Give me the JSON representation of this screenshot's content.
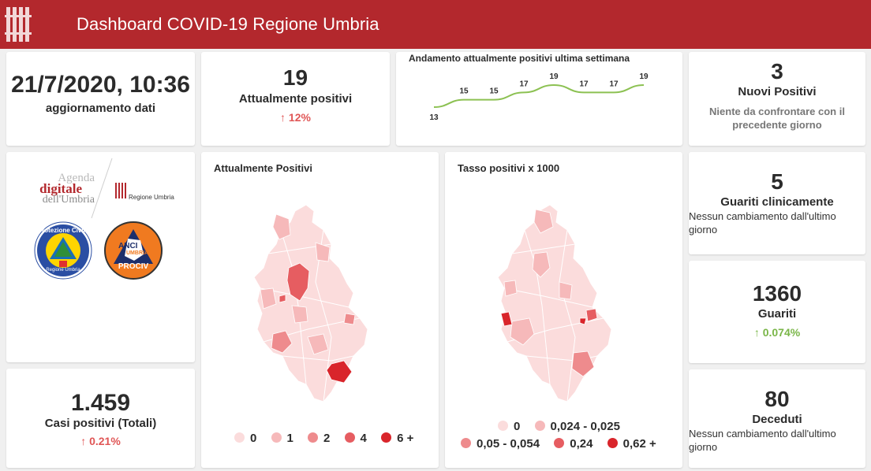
{
  "header": {
    "title": "Dashboard COVID-19 Regione Umbria"
  },
  "update": {
    "datetime": "21/7/2020, 10:36",
    "label": "aggiornamento dati"
  },
  "attualmente": {
    "value": "19",
    "label": "Attualmente positivi",
    "change": "↑ 12%"
  },
  "trend": {
    "title": "Andamento attualmente positivi ultima settimana",
    "values": [
      "13",
      "15",
      "15",
      "17",
      "19",
      "17",
      "17",
      "19"
    ]
  },
  "chart_data": {
    "type": "line",
    "title": "Andamento attualmente positivi ultima settimana",
    "series": [
      {
        "values": [
          13,
          15,
          15,
          17,
          19,
          17,
          17,
          19
        ]
      }
    ],
    "ylim": [
      13,
      19
    ],
    "grid": false
  },
  "nuovi": {
    "value": "3",
    "label": "Nuovi Positivi",
    "note": "Niente da confrontare con il precedente giorno"
  },
  "logos": {
    "agenda_line1": "Agenda",
    "agenda_line2": "digitale",
    "agenda_line3": "dell'Umbria",
    "regione": "Regione Umbria",
    "pc_ring": "Protezione Civile",
    "pc_bottom": "Regione Umbria",
    "anci_1": "ANCI",
    "anci_2": "UMBRIA",
    "anci_3": "PROCIV"
  },
  "map1": {
    "title": "Attualmente Positivi",
    "legend": [
      "0",
      "1",
      "2",
      "4",
      "6 +"
    ]
  },
  "map2": {
    "title": "Tasso positivi x 1000",
    "legend": [
      "0",
      "0,024 - 0,025",
      "0,05 - 0,054",
      "0,24",
      "0,62 +"
    ]
  },
  "colors": {
    "c0": "#fbdcdc",
    "c1": "#f6b9ba",
    "c2": "#ee8b8d",
    "c3": "#e65d61",
    "c4": "#d9252b"
  },
  "guariti_clin": {
    "value": "5",
    "label": "Guariti clinicamente",
    "note": "Nessun cambiamento dall'ultimo giorno"
  },
  "guariti": {
    "value": "1360",
    "label": "Guariti",
    "change": "↑ 0.074%"
  },
  "casi": {
    "value": "1.459",
    "label": "Casi positivi (Totali)",
    "change": "↑ 0.21%"
  },
  "deceduti": {
    "value": "80",
    "label": "Deceduti",
    "note": "Nessun cambiamento dall'ultimo giorno"
  }
}
